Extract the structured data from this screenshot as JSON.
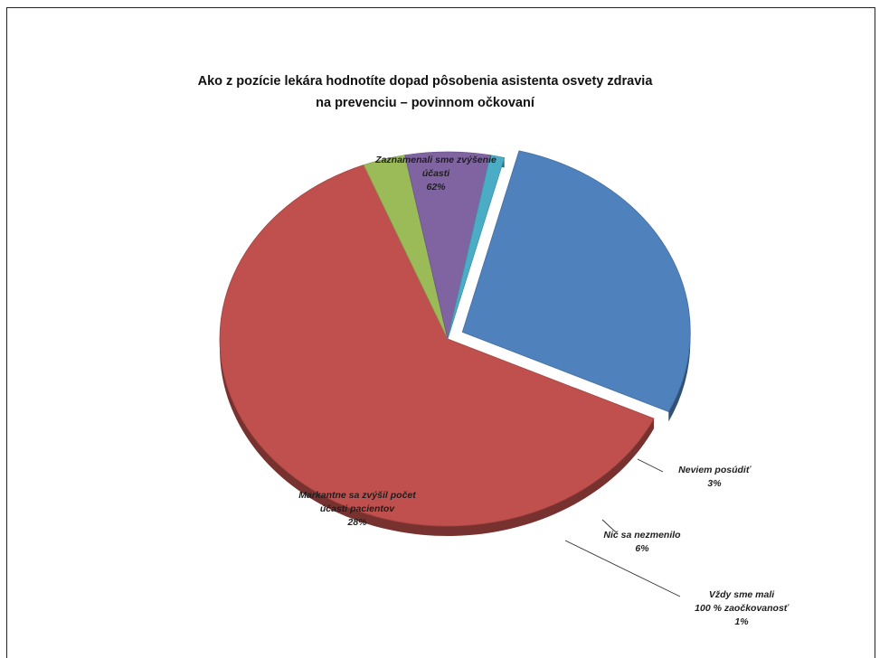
{
  "chart_data": {
    "type": "pie",
    "title": "Ako z pozície lekára hodnotíte dopad pôsobenia asistenta osvety zdravia na prevenciu – povinnom očkovaní",
    "title_lines": [
      "Ako z pozície lekára hodnotíte dopad pôsobenia asistenta osvety zdravia",
      "na prevenciu – povinnom očkovaní"
    ],
    "slices": [
      {
        "name": "Zaznamenali sme zvýšenie účasti",
        "label_lines": [
          "Zaznamenali sme zvýšenie",
          "účasti"
        ],
        "value": 62,
        "value_label": "62%",
        "color": "#c0504d",
        "exploded": false
      },
      {
        "name": "Neviem posúdiť",
        "label_lines": [
          "Neviem posúdiť"
        ],
        "value": 3,
        "value_label": "3%",
        "color": "#9bbb59",
        "exploded": false
      },
      {
        "name": "Nič sa nezmenilo",
        "label_lines": [
          "Nič sa nezmenilo"
        ],
        "value": 6,
        "value_label": "6%",
        "color": "#8064a2",
        "exploded": false
      },
      {
        "name": "Vždy sme mali 100 % zaočkovanosť",
        "label_lines": [
          "Vždy sme mali",
          "100 % zaočkovanosť"
        ],
        "value": 1,
        "value_label": "1%",
        "color": "#4bacc6",
        "exploded": false
      },
      {
        "name": "Markantne sa zvýšil počet účasti pacientov",
        "label_lines": [
          "Markantne sa zvýšil počet",
          "účasti pacientov"
        ],
        "value": 28,
        "value_label": "28%",
        "color": "#4f81bd",
        "exploded": true
      }
    ],
    "legend": "none",
    "labels": "data labels with leader lines"
  }
}
